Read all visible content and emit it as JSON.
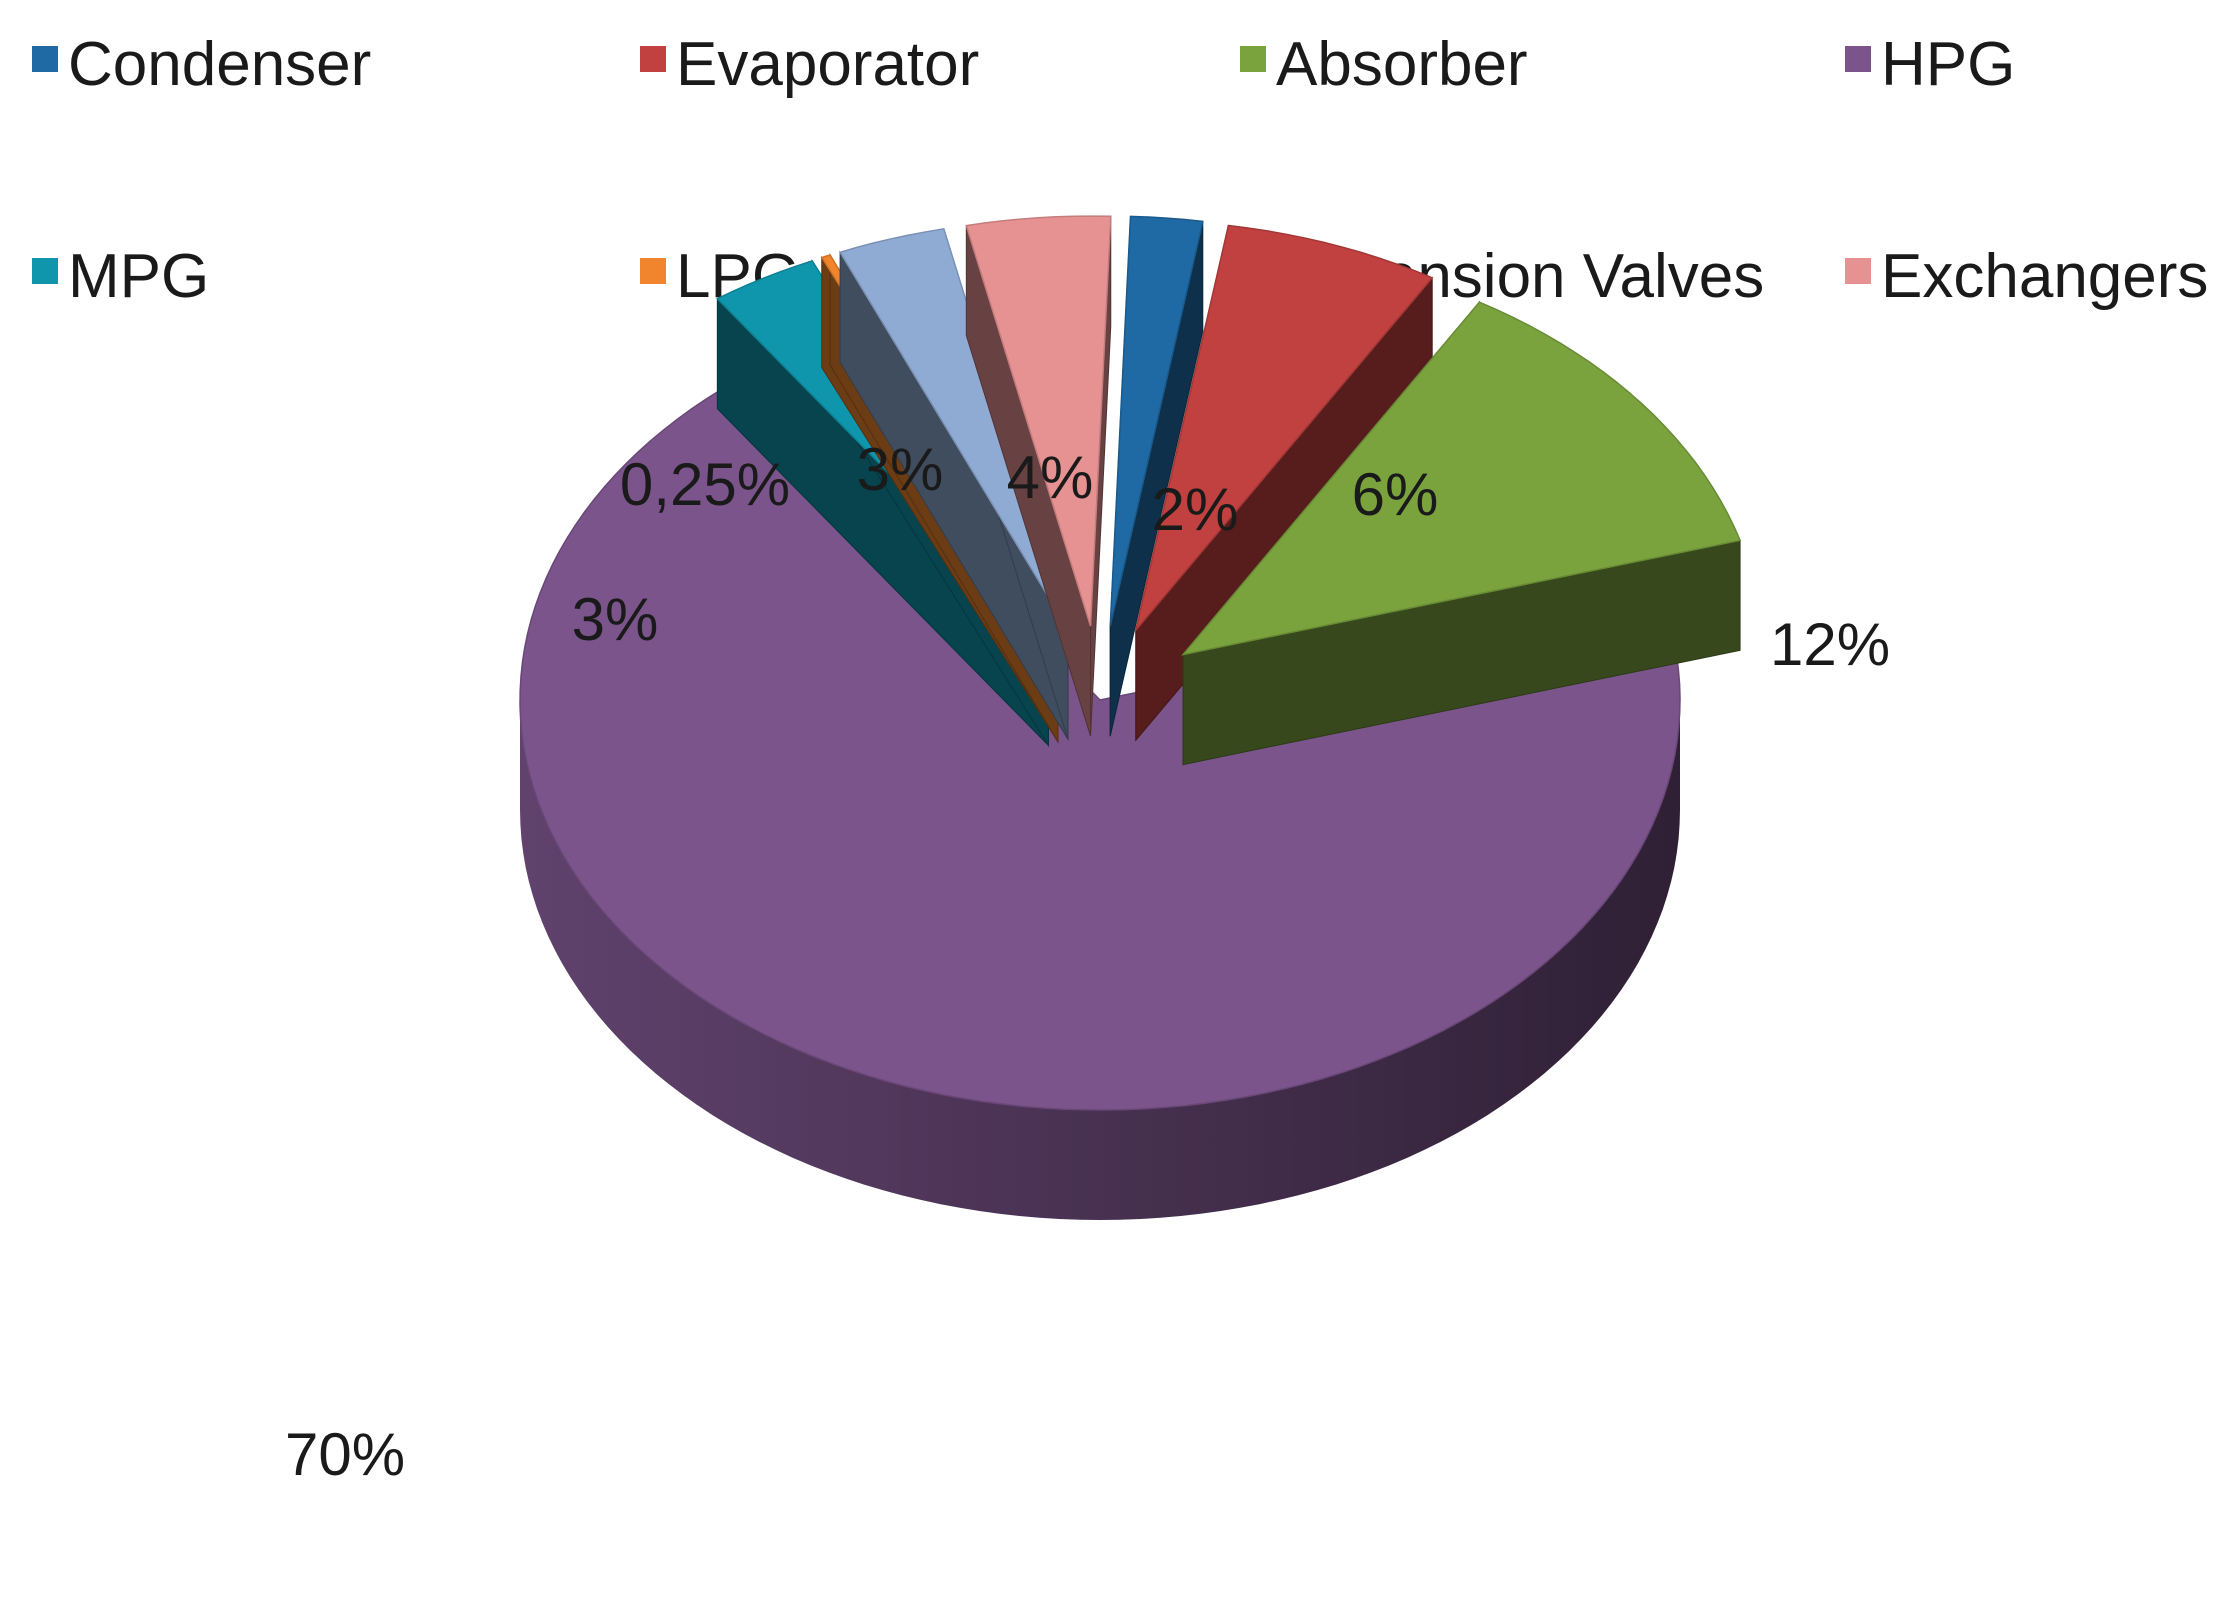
{
  "chart_data": {
    "type": "pie",
    "style": "3d-exploded",
    "legend_position": "top",
    "series": [
      {
        "slices": [
          {
            "name": "Condenser",
            "value": 2,
            "label": "2%",
            "color": "#1f6aa5"
          },
          {
            "name": "Evaporator",
            "value": 6,
            "label": "6%",
            "color": "#c0413f"
          },
          {
            "name": "Absorber",
            "value": 12,
            "label": "12%",
            "color": "#7aa33e"
          },
          {
            "name": "HPG",
            "value": 70,
            "label": "70%",
            "color": "#7b548c"
          },
          {
            "name": "MPG",
            "value": 3,
            "label": "3%",
            "color": "#0f96ad"
          },
          {
            "name": "LPG",
            "value": 0.25,
            "label": "0,25%",
            "color": "#f0852d"
          },
          {
            "name": "Expansion Valves",
            "value": 3,
            "label": "3%",
            "color": "#8fabd4"
          },
          {
            "name": "Exchangers",
            "value": 4,
            "label": "4%",
            "color": "#e79292"
          }
        ]
      }
    ],
    "legend": [
      "Condenser",
      "Evaporator",
      "Absorber",
      "HPG",
      "MPG",
      "LPG",
      "Expansion Valves",
      "Exchangers"
    ]
  }
}
